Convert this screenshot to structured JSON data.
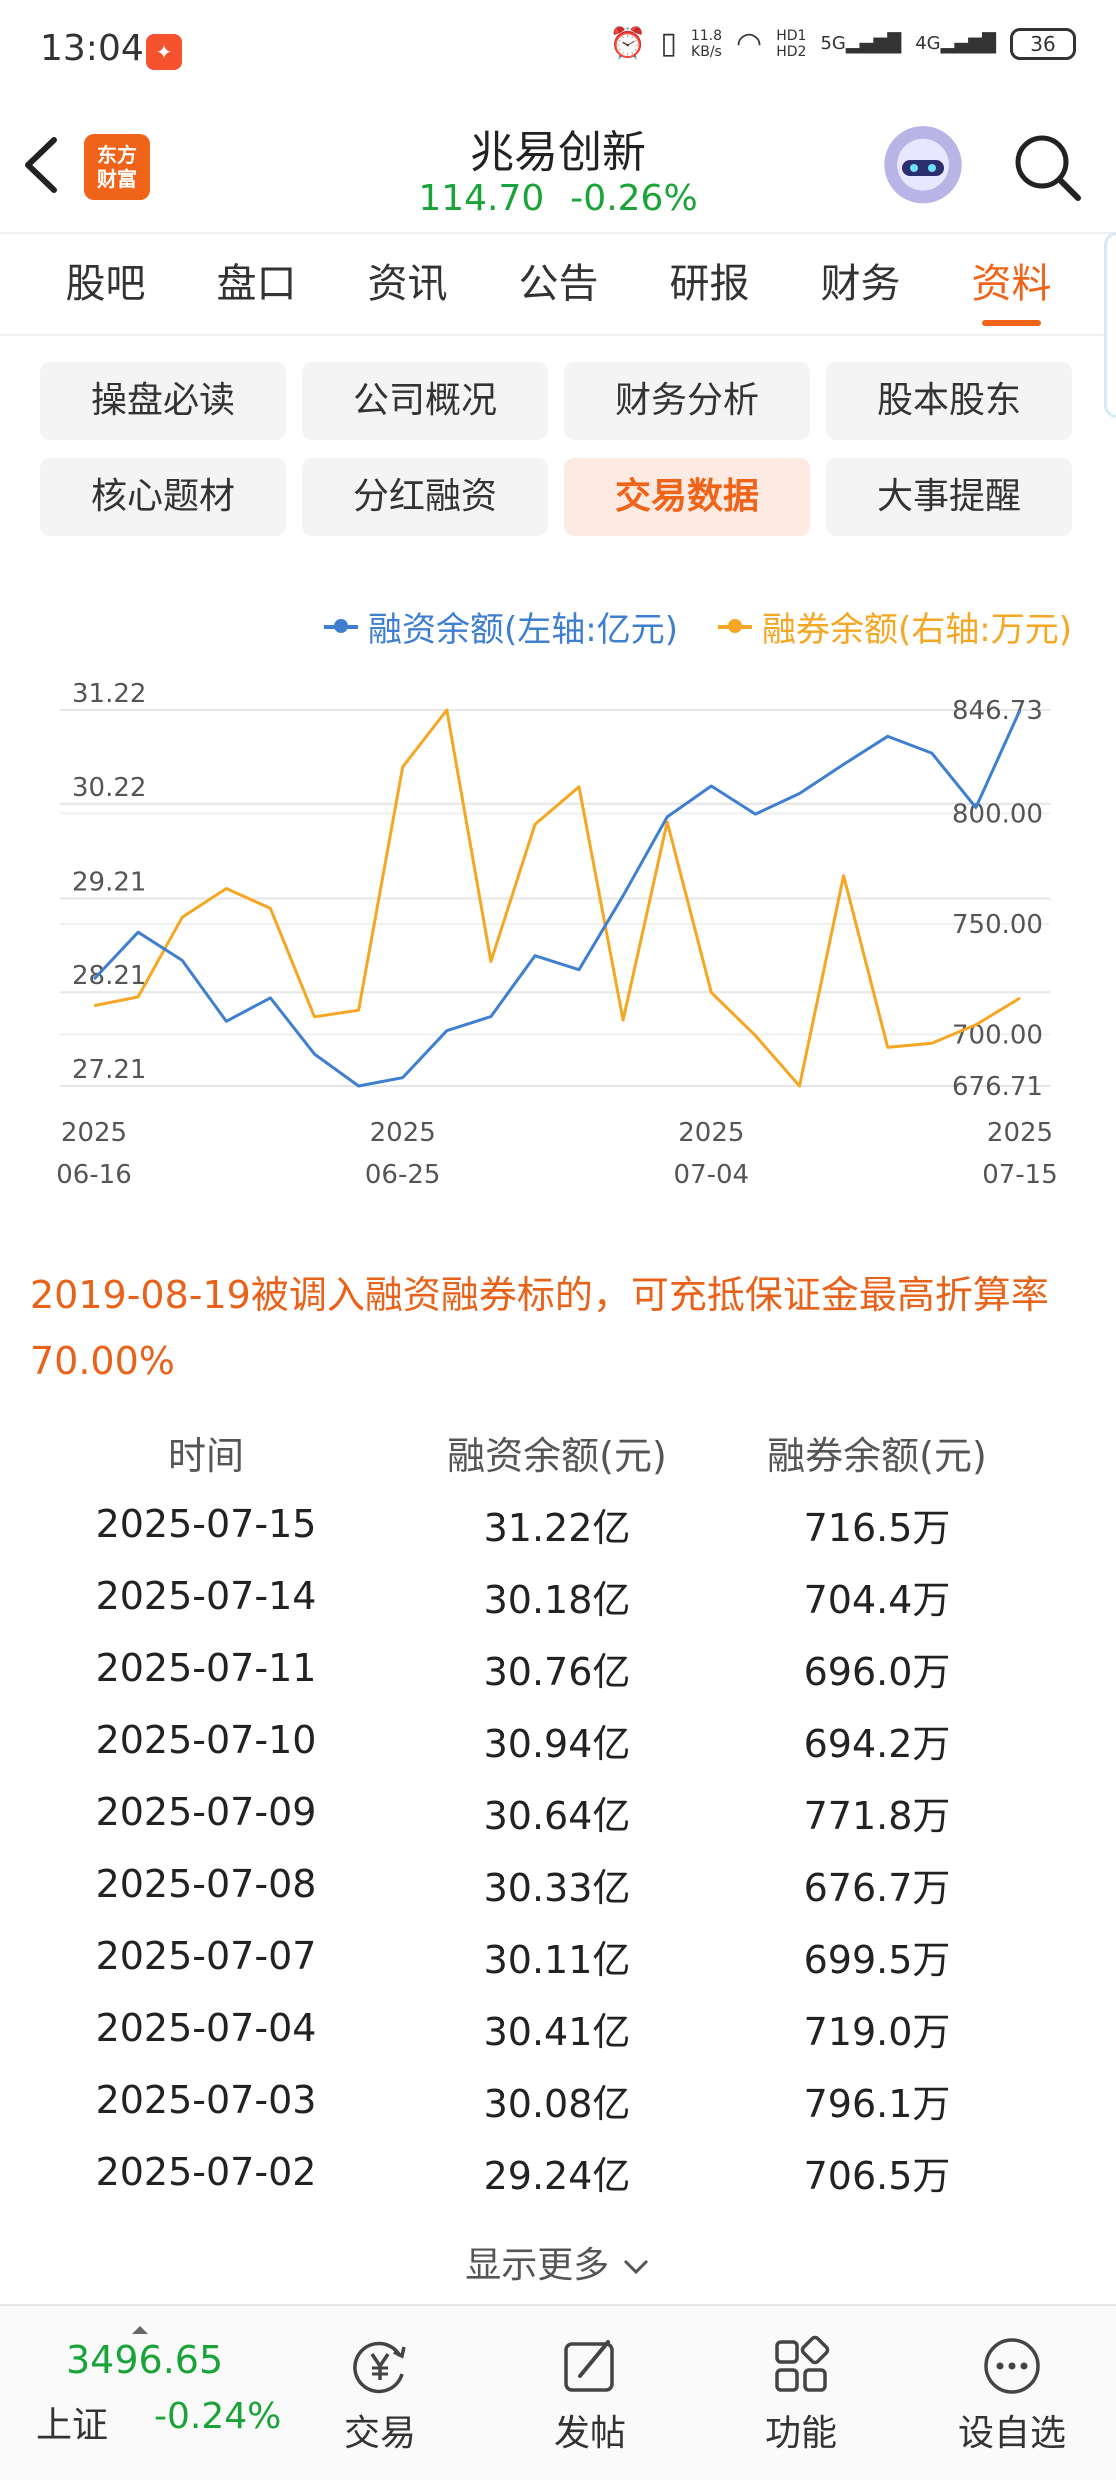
{
  "status_bar": {
    "time": "13:04",
    "app_badge_icon": "app-notification-icon",
    "net_speed_value": "11.8",
    "net_speed_unit": "KB/s",
    "hd1": "HD1",
    "hd2": "HD2",
    "sig_5g": "5G",
    "sig_4g": "4G",
    "battery": "36"
  },
  "header": {
    "logo_line1": "东方",
    "logo_line2": "财富",
    "stock_name": "兆易创新",
    "price": "114.70",
    "change": "-0.26%",
    "quote_color": "#1aa338"
  },
  "tabs": [
    "股吧",
    "盘口",
    "资讯",
    "公告",
    "研报",
    "财务",
    "资料"
  ],
  "active_tab_index": 6,
  "subnav": [
    "操盘必读",
    "公司概况",
    "财务分析",
    "股本股东",
    "核心题材",
    "分红融资",
    "交易数据",
    "大事提醒"
  ],
  "active_subnav_index": 6,
  "chart_data": {
    "type": "line",
    "legend": [
      {
        "name": "融资余额(左轴:亿元)",
        "color": "#3f7fd0"
      },
      {
        "name": "融券余额(右轴:万元)",
        "color": "#f5a623"
      }
    ],
    "legend_placement": "top-right",
    "x_ticks": [
      {
        "line1": "2025",
        "line2": "06-16"
      },
      {
        "line1": "2025",
        "line2": "06-25"
      },
      {
        "line1": "2025",
        "line2": "07-04"
      },
      {
        "line1": "2025",
        "line2": "07-15"
      }
    ],
    "left_axis_ticks": [
      "31.22",
      "30.22",
      "29.21",
      "28.21",
      "27.21"
    ],
    "right_axis_ticks": [
      "846.73",
      "800.00",
      "750.00",
      "700.00",
      "676.71"
    ],
    "left_ylim": [
      27.21,
      31.22
    ],
    "right_ylim": [
      676.71,
      846.73
    ],
    "grid": true,
    "series": [
      {
        "name": "融资余额(左轴:亿元)",
        "axis": "left",
        "values": [
          28.35,
          28.85,
          28.55,
          27.9,
          28.15,
          27.55,
          27.21,
          27.3,
          27.8,
          27.95,
          28.6,
          28.45,
          29.24,
          30.08,
          30.41,
          30.11,
          30.33,
          30.64,
          30.94,
          30.76,
          30.18,
          31.22
        ]
      },
      {
        "name": "融券余额(右轴:万元)",
        "axis": "right",
        "values": [
          713.0,
          717.0,
          753.0,
          766.0,
          757.0,
          708.0,
          711.0,
          821.0,
          846.73,
          733.0,
          795.0,
          812.0,
          706.5,
          796.1,
          719.0,
          699.5,
          676.7,
          771.8,
          694.2,
          696.0,
          704.4,
          716.5
        ]
      }
    ]
  },
  "note": "2019-08-19被调入融资融券标的，可充抵保证金最高折算率70.00%",
  "table": {
    "headers": [
      "时间",
      "融资余额(元)",
      "融券余额(元)"
    ],
    "rows": [
      [
        "2025-07-15",
        "31.22亿",
        "716.5万"
      ],
      [
        "2025-07-14",
        "30.18亿",
        "704.4万"
      ],
      [
        "2025-07-11",
        "30.76亿",
        "696.0万"
      ],
      [
        "2025-07-10",
        "30.94亿",
        "694.2万"
      ],
      [
        "2025-07-09",
        "30.64亿",
        "771.8万"
      ],
      [
        "2025-07-08",
        "30.33亿",
        "676.7万"
      ],
      [
        "2025-07-07",
        "30.11亿",
        "699.5万"
      ],
      [
        "2025-07-04",
        "30.41亿",
        "719.0万"
      ],
      [
        "2025-07-03",
        "30.08亿",
        "796.1万"
      ],
      [
        "2025-07-02",
        "29.24亿",
        "706.5万"
      ]
    ],
    "more_label": "显示更多"
  },
  "bottom_bar": {
    "index_value": "3496.65",
    "index_name": "上证",
    "index_change": "-0.24%",
    "buttons": [
      {
        "label": "交易",
        "icon": "trade-yen-icon"
      },
      {
        "label": "发帖",
        "icon": "edit-post-icon"
      },
      {
        "label": "功能",
        "icon": "grid-function-icon"
      },
      {
        "label": "设自选",
        "icon": "more-dots-icon"
      }
    ]
  }
}
